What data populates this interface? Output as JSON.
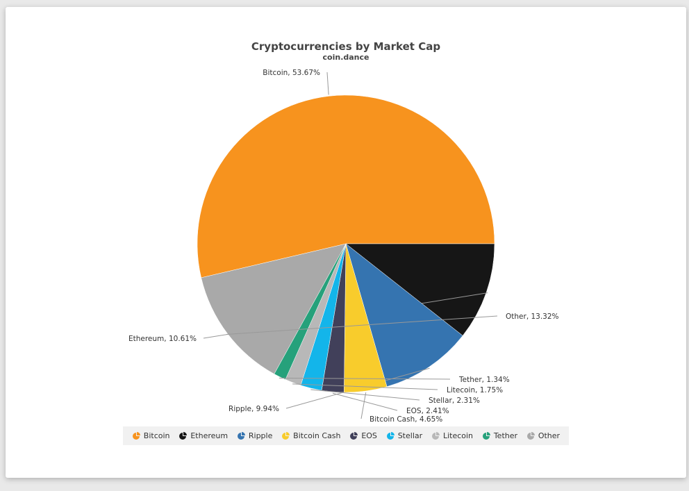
{
  "chart_data": {
    "type": "pie",
    "title": "Cryptocurrencies by Market Cap",
    "subtitle": "coin.dance",
    "legend_position": "bottom",
    "slices": [
      {
        "name": "Bitcoin",
        "value": 53.67,
        "label": "Bitcoin, 53.67%",
        "color": "#f7931e"
      },
      {
        "name": "Ethereum",
        "value": 10.61,
        "label": "Ethereum, 10.61%",
        "color": "#161616"
      },
      {
        "name": "Ripple",
        "value": 9.94,
        "label": "Ripple, 9.94%",
        "color": "#3574b0"
      },
      {
        "name": "Bitcoin Cash",
        "value": 4.65,
        "label": "Bitcoin Cash, 4.65%",
        "color": "#f8cc2c"
      },
      {
        "name": "EOS",
        "value": 2.41,
        "label": "EOS, 2.41%",
        "color": "#41405a"
      },
      {
        "name": "Stellar",
        "value": 2.31,
        "label": "Stellar, 2.31%",
        "color": "#13b5ea"
      },
      {
        "name": "Litecoin",
        "value": 1.75,
        "label": "Litecoin, 1.75%",
        "color": "#b8b8b8"
      },
      {
        "name": "Tether",
        "value": 1.34,
        "label": "Tether, 1.34%",
        "color": "#26a17b"
      },
      {
        "name": "Other",
        "value": 13.32,
        "label": "Other, 13.32%",
        "color": "#a9a9a9"
      }
    ]
  }
}
